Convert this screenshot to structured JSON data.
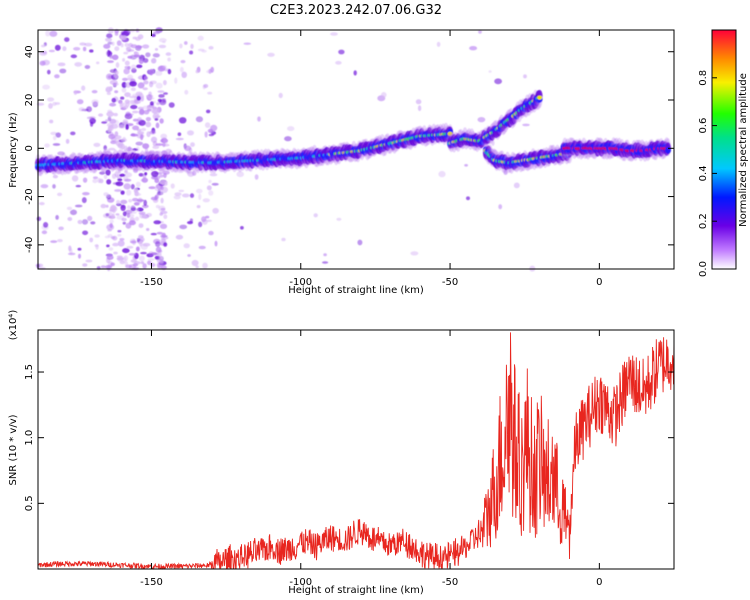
{
  "title": "C2E3.2023.242.07.06.G32",
  "chart_data": [
    {
      "type": "heatmap",
      "xlabel": "Height of straight line (km)",
      "ylabel": "Frequency (Hz)",
      "xlim": [
        -188,
        25
      ],
      "ylim": [
        -50,
        49
      ],
      "xticks": [
        -150,
        -100,
        -50,
        0
      ],
      "yticks": [
        -40,
        -20,
        0,
        20,
        40
      ],
      "colorbar": {
        "label": "Normalized spectral amplitude",
        "range": [
          0.0,
          1.0
        ],
        "ticks": [
          "0.0",
          "0.2",
          "0.4",
          "0.6",
          "0.8"
        ]
      },
      "ridges": [
        {
          "name": "",
          "x": [
            -188,
            -160,
            -130,
            -100,
            -80,
            -60,
            -50
          ],
          "y": [
            -7,
            -5,
            -6,
            -4,
            -1,
            5,
            6
          ]
        },
        {
          "name": "",
          "x": [
            -50,
            -45,
            -40,
            -35,
            -30,
            -25,
            -20
          ],
          "y": [
            2,
            4,
            3,
            7,
            12,
            17,
            21
          ]
        },
        {
          "name": "",
          "x": [
            -38,
            -35,
            -30,
            -25,
            -20,
            -15,
            -10
          ],
          "y": [
            -1,
            -5,
            -6,
            -5,
            -4,
            -3,
            -2
          ]
        },
        {
          "name": "",
          "x": [
            -12,
            -5,
            0,
            5,
            10,
            15,
            20,
            23
          ],
          "y": [
            0,
            0,
            0,
            0,
            -1,
            -1,
            0,
            0
          ]
        }
      ]
    },
    {
      "type": "line",
      "xlabel": "Height of straight line (km)",
      "ylabel": "SNR (10 * v/v)",
      "yscale_label": "(x10⁴)",
      "xlim": [
        -188,
        25
      ],
      "ylim": [
        0,
        1.82
      ],
      "xticks": [
        -150,
        -100,
        -50,
        0
      ],
      "yticks": [
        0.5,
        1.0,
        1.5
      ],
      "series": [
        {
          "name": "",
          "color": "#e8261f",
          "x": [
            -188,
            -180,
            -170,
            -160,
            -150,
            -140,
            -130,
            -125,
            -120,
            -115,
            -110,
            -105,
            -100,
            -95,
            -90,
            -85,
            -80,
            -75,
            -70,
            -65,
            -60,
            -55,
            -50,
            -45,
            -40,
            -37,
            -34,
            -32,
            -30,
            -28,
            -26,
            -24,
            -22,
            -20,
            -18,
            -16,
            -14,
            -12,
            -10,
            -8,
            -5,
            0,
            5,
            10,
            15,
            20,
            25
          ],
          "y": [
            0.03,
            0.04,
            0.04,
            0.03,
            0.02,
            0.02,
            0.03,
            0.06,
            0.09,
            0.12,
            0.17,
            0.14,
            0.2,
            0.18,
            0.24,
            0.22,
            0.3,
            0.22,
            0.18,
            0.22,
            0.12,
            0.08,
            0.1,
            0.16,
            0.28,
            0.55,
            0.9,
            1.25,
            1.6,
            1.1,
            0.95,
            1.2,
            0.85,
            1.05,
            0.8,
            0.95,
            0.7,
            0.55,
            0.3,
            0.95,
            1.1,
            1.3,
            1.15,
            1.45,
            1.35,
            1.55,
            1.62
          ]
        }
      ]
    }
  ]
}
